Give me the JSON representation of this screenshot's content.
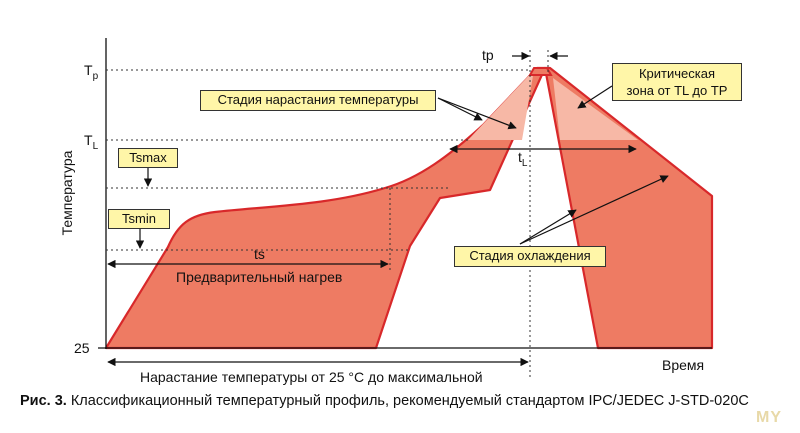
{
  "diagram": {
    "y_axis_label": "Температура",
    "x_axis_label": "Время",
    "y_ticks": {
      "tp": "T",
      "tp_sub": "p",
      "tl": "T",
      "tl_sub": "L",
      "t25": "25"
    },
    "interval_labels": {
      "tp": "tp",
      "tl": "t",
      "tl_sub": "L",
      "ts": "ts"
    },
    "callouts": {
      "ramp_up": "Стадия нарастания температуры",
      "critical_line1": "Критическая",
      "critical_line2": "зона от TL до TP",
      "tsmax": "Tsmax",
      "tsmin": "Tsmin",
      "cooling": "Стадия охлаждения"
    },
    "text_labels": {
      "preheat": "Предварительный нагрев",
      "ramp_total": "Нарастание температуры от 25 °С до максимальной"
    },
    "colors": {
      "fill": "#ee7b63",
      "critical_fill": "#f7b8a6",
      "outline": "#d8282a",
      "callout_bg": "#fff6a8"
    }
  },
  "caption": {
    "prefix": "Рис. 3.",
    "text": " Классификационный температурный профиль, рекомендуемый стандартом IPC/JEDEC J-STD-020C"
  },
  "watermark": "MY"
}
